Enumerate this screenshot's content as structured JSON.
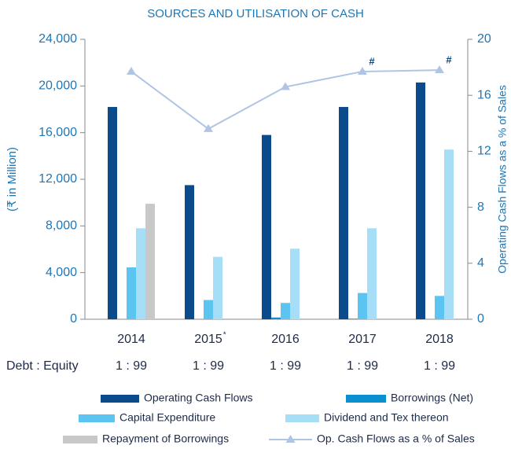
{
  "chart_data": {
    "type": "bar",
    "title": "SOURCES AND UTILISATION OF CASH",
    "y_label": "(₹ in Million)",
    "y2_label": "Operating Cash Flows as a % of Sales",
    "categories": [
      "2014",
      "2015",
      "2016",
      "2017",
      "2018"
    ],
    "notes": [
      {
        "text": "*",
        "category": "2015",
        "position": "label"
      },
      {
        "text": "#",
        "category": "2017",
        "position": "line"
      },
      {
        "text": "#",
        "category": "2018",
        "position": "line"
      }
    ],
    "series": [
      {
        "name": "Operating Cash Flows",
        "color": "#0b4b8c",
        "values": [
          18200,
          11500,
          15800,
          18200,
          20300
        ]
      },
      {
        "name": "Borrowings (Net)",
        "color": "#0a8fd0",
        "values": [
          0,
          0,
          150,
          50,
          0
        ]
      },
      {
        "name": "Capital Expenditure",
        "color": "#5bc4f1",
        "values": [
          4450,
          1650,
          1400,
          2250,
          2000
        ]
      },
      {
        "name": "Dividend and Tex thereon",
        "color": "#a6def7",
        "values": [
          7800,
          5350,
          6050,
          7800,
          14550
        ]
      },
      {
        "name": "Repayment of Borrowings",
        "color": "#c8c8c8",
        "values": [
          9900,
          0,
          0,
          0,
          0
        ]
      },
      {
        "name": "Op. Cash Flows as a % of Sales",
        "color": "#b0c4e4",
        "type": "line",
        "axis": "y2",
        "values": [
          17.7,
          13.6,
          16.6,
          17.7,
          17.8
        ]
      }
    ],
    "ylim": [
      0,
      24000
    ],
    "yticks": [
      0,
      {
        "value": 4000,
        "label": "4,000"
      },
      {
        "value": 8000,
        "label": "8,000"
      },
      {
        "value": 12000,
        "label": "12,000"
      },
      {
        "value": 16000,
        "label": "16,000"
      },
      {
        "value": 20000,
        "label": "20,000"
      },
      {
        "value": 24000,
        "label": "24,000"
      }
    ],
    "y2lim": [
      0,
      20
    ],
    "y2ticks": [
      0,
      4,
      8,
      12,
      16,
      20
    ],
    "debt_equity": {
      "label": "Debt : Equity",
      "values": [
        "1 : 99",
        "1 : 99",
        "1 : 99",
        "1 : 99",
        "1 : 99"
      ]
    }
  }
}
